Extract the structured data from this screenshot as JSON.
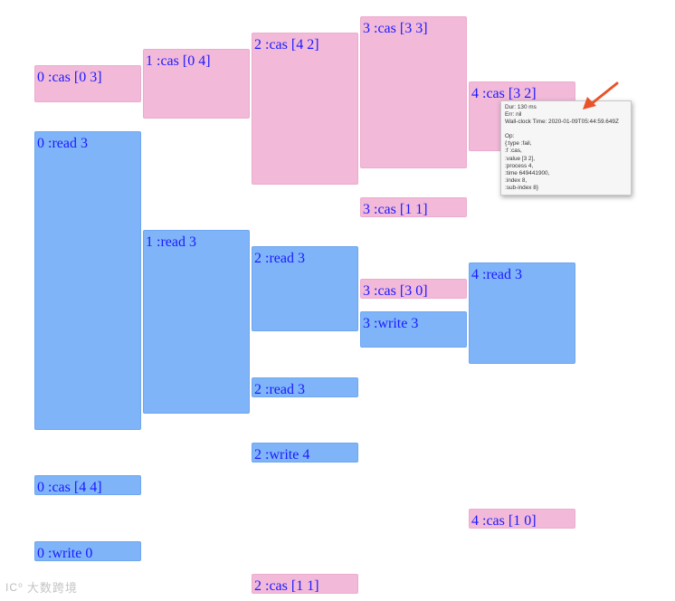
{
  "colors": {
    "fail": "#f2b9d9",
    "ok": "#7fb4f8",
    "text": "#1a1aff",
    "arrow": "#e8542a"
  },
  "ops": [
    {
      "label": "0 :cas [0 3]",
      "kind": "fail"
    },
    {
      "label": "0 :read 3",
      "kind": "ok"
    },
    {
      "label": "0 :cas [4 4]",
      "kind": "ok"
    },
    {
      "label": "0 :write 0",
      "kind": "ok"
    },
    {
      "label": "1 :cas [0 4]",
      "kind": "fail"
    },
    {
      "label": "1 :read 3",
      "kind": "ok"
    },
    {
      "label": "2 :cas [4 2]",
      "kind": "fail"
    },
    {
      "label": "2 :read 3",
      "kind": "ok"
    },
    {
      "label": "2 :read 3",
      "kind": "ok"
    },
    {
      "label": "2 :write 4",
      "kind": "ok"
    },
    {
      "label": "2 :cas [1 1]",
      "kind": "fail"
    },
    {
      "label": "3 :cas [3 3]",
      "kind": "fail"
    },
    {
      "label": "3 :cas [1 1]",
      "kind": "fail"
    },
    {
      "label": "3 :cas [3 0]",
      "kind": "fail"
    },
    {
      "label": "3 :write 3",
      "kind": "ok"
    },
    {
      "label": "4 :cas [3 2]",
      "kind": "fail"
    },
    {
      "label": "4 :read 3",
      "kind": "ok"
    },
    {
      "label": "4 :cas [1 0]",
      "kind": "fail"
    }
  ],
  "tooltip": {
    "dur": "Dur: 130 ms",
    "err": "Err: nil",
    "wall_clock": "Wall-clock Time: 2020-01-09T05:44:59.649Z",
    "op_label": "Op:",
    "op_lines": [
      "{:type :fail,",
      " :f :cas,",
      " :value [3 2],",
      " :process 4,",
      " :time 649441900,",
      " :index 8,",
      " :sub-index 8}"
    ]
  },
  "watermark": {
    "logo": "IC⁰",
    "text": "大数跨境"
  }
}
